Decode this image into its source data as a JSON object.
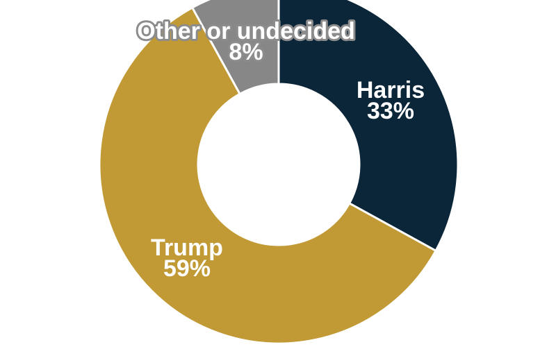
{
  "chart_data": {
    "type": "pie",
    "donut": true,
    "categories": [
      "Harris",
      "Trump",
      "Other or undecided"
    ],
    "values": [
      33,
      59,
      8
    ],
    "value_labels": [
      "33%",
      "59%",
      "8%"
    ],
    "colors": [
      "#0b2539",
      "#c19a35",
      "#878787"
    ],
    "title": "",
    "legend": "none",
    "start": "top, clockwise"
  }
}
